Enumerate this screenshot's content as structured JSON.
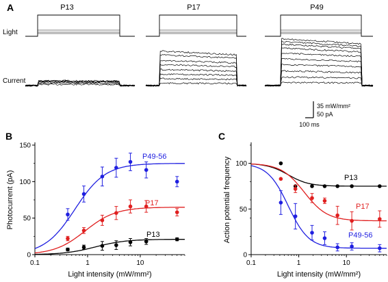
{
  "panel_a": {
    "letter": "A",
    "trace_labels": [
      "P13",
      "P17",
      "P49"
    ],
    "light_label": "Light",
    "current_label": "Current",
    "scalebar": {
      "light": "35 mW/mm²",
      "current": "50 pA",
      "time": "100 ms"
    },
    "trace_amplitudes_pA": [
      [
        3,
        6,
        9,
        11,
        12,
        13
      ],
      [
        6,
        18,
        30,
        42,
        55,
        66,
        80,
        90
      ],
      [
        8,
        22,
        38,
        55,
        70,
        85,
        98,
        108,
        115,
        122
      ]
    ]
  },
  "chart_data": [
    {
      "type": "scatter",
      "panel": "B",
      "xlabel": "Light intensity (mW/mm²)",
      "ylabel": "Photocurrent (pA)",
      "xscale": "log",
      "xlim": [
        0.1,
        70
      ],
      "ylim": [
        0,
        150
      ],
      "xticks": [
        "0.1",
        "1",
        "10"
      ],
      "yticks": [
        0,
        50,
        100,
        150
      ],
      "series": [
        {
          "name": "P49-56",
          "color": "#1f1fe0",
          "x": [
            0.42,
            0.85,
            1.9,
            3.5,
            6.5,
            13,
            50
          ],
          "y": [
            55,
            83,
            107,
            119,
            127,
            116,
            100
          ],
          "err": [
            8,
            11,
            13,
            13,
            12,
            11,
            7
          ],
          "fit": {
            "max": 125,
            "ec50": 0.58,
            "n": 1.5
          }
        },
        {
          "name": "P17",
          "color": "#e01f1f",
          "x": [
            0.42,
            0.85,
            1.9,
            3.5,
            6.5,
            13,
            50
          ],
          "y": [
            22,
            33,
            47,
            57,
            66,
            66,
            58
          ],
          "err": [
            3,
            4,
            7,
            9,
            9,
            8,
            5
          ],
          "fit": {
            "max": 65,
            "ec50": 0.9,
            "n": 1.5
          }
        },
        {
          "name": "P13",
          "color": "#000000",
          "x": [
            0.42,
            0.85,
            1.9,
            3.5,
            6.5,
            13,
            50
          ],
          "y": [
            7,
            10,
            12,
            13,
            17,
            18,
            21
          ],
          "err": [
            2,
            3,
            6,
            6,
            5,
            4,
            2
          ],
          "fit": {
            "max": 21,
            "ec50": 1.4,
            "n": 1.5
          }
        }
      ]
    },
    {
      "type": "scatter",
      "panel": "C",
      "xlabel": "Light intensity (mW/mm²)",
      "ylabel": "Action potential frequency",
      "xscale": "log",
      "xlim": [
        0.1,
        70
      ],
      "ylim": [
        0,
        120
      ],
      "xticks": [
        "0.1",
        "1",
        "10"
      ],
      "yticks": [
        0,
        50,
        100
      ],
      "series": [
        {
          "name": "P13",
          "color": "#000000",
          "x": [
            0.42,
            0.85,
            1.9,
            3.5,
            6.5,
            13,
            50
          ],
          "y": [
            100,
            75,
            75,
            75,
            75,
            75,
            75
          ],
          "err": [
            0,
            0,
            0,
            0,
            0,
            0,
            0
          ],
          "fit": {
            "min": 75,
            "ic50": 0.6,
            "n": 2
          }
        },
        {
          "name": "P17",
          "color": "#e01f1f",
          "x": [
            0.42,
            0.85,
            1.9,
            3.5,
            6.5,
            13,
            50
          ],
          "y": [
            83,
            72,
            62,
            59,
            43,
            37,
            39
          ],
          "err": [
            0,
            4,
            5,
            3,
            10,
            10,
            9
          ],
          "fit": {
            "min": 37,
            "ic50": 1.3,
            "n": 1.8
          }
        },
        {
          "name": "P49-56",
          "color": "#1f1fe0",
          "x": [
            0.42,
            0.85,
            1.9,
            3.5,
            6.5,
            13,
            50
          ],
          "y": [
            57,
            42,
            24,
            18,
            8,
            9,
            7
          ],
          "err": [
            13,
            14,
            8,
            7,
            4,
            4,
            4
          ],
          "fit": {
            "min": 7,
            "ic50": 0.6,
            "n": 2
          }
        }
      ]
    }
  ]
}
